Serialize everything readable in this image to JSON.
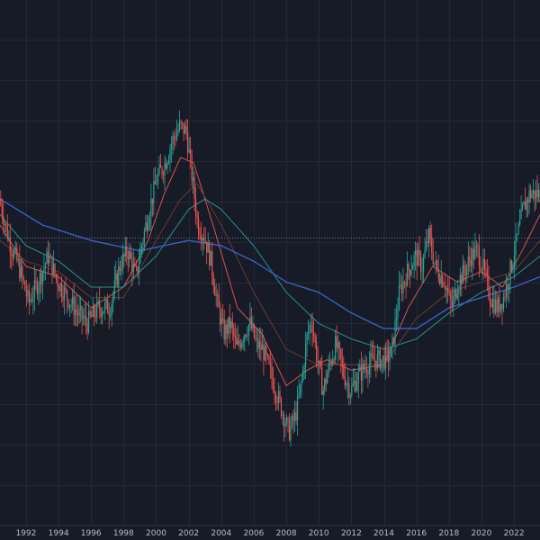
{
  "chart_data": {
    "type": "candlestick",
    "title": "",
    "xlabel": "",
    "ylabel": "",
    "x_ticks": [
      "1992",
      "1994",
      "1996",
      "1998",
      "2000",
      "2002",
      "2004",
      "2006",
      "2008",
      "2010",
      "2012",
      "2014",
      "2016",
      "2018",
      "2020",
      "2022"
    ],
    "xlim": [
      1990.4,
      2023.6
    ],
    "ylim": [
      0,
      100
    ],
    "y_axis_labels_visible": false,
    "grid": true,
    "price_path": [
      [
        1990.4,
        63
      ],
      [
        1991.0,
        55
      ],
      [
        1991.6,
        50
      ],
      [
        1992.2,
        43
      ],
      [
        1992.8,
        47
      ],
      [
        1993.4,
        52
      ],
      [
        1994.0,
        47
      ],
      [
        1994.6,
        44
      ],
      [
        1995.2,
        41
      ],
      [
        1995.8,
        39
      ],
      [
        1996.5,
        42
      ],
      [
        1997.2,
        42
      ],
      [
        1997.8,
        50
      ],
      [
        1998.3,
        53
      ],
      [
        1998.8,
        48
      ],
      [
        1999.2,
        55
      ],
      [
        1999.7,
        62
      ],
      [
        2000.1,
        67
      ],
      [
        2000.6,
        70
      ],
      [
        2001.0,
        74
      ],
      [
        2001.5,
        77
      ],
      [
        2001.9,
        76
      ],
      [
        2002.3,
        66
      ],
      [
        2002.6,
        58
      ],
      [
        2003.0,
        56
      ],
      [
        2003.4,
        51
      ],
      [
        2003.8,
        43
      ],
      [
        2004.2,
        37
      ],
      [
        2004.6,
        39
      ],
      [
        2005.0,
        34
      ],
      [
        2005.4,
        37
      ],
      [
        2005.8,
        39
      ],
      [
        2006.2,
        35
      ],
      [
        2006.6,
        34
      ],
      [
        2007.2,
        28
      ],
      [
        2007.8,
        22
      ],
      [
        2008.2,
        18
      ],
      [
        2008.6,
        21
      ],
      [
        2009.0,
        28
      ],
      [
        2009.3,
        36
      ],
      [
        2009.6,
        40
      ],
      [
        2009.9,
        33
      ],
      [
        2010.3,
        26
      ],
      [
        2010.7,
        31
      ],
      [
        2011.1,
        35
      ],
      [
        2011.6,
        29
      ],
      [
        2012.0,
        26
      ],
      [
        2012.5,
        29
      ],
      [
        2013.0,
        31
      ],
      [
        2013.5,
        32
      ],
      [
        2014.0,
        32
      ],
      [
        2014.5,
        33
      ],
      [
        2015.0,
        45
      ],
      [
        2015.5,
        49
      ],
      [
        2016.0,
        52
      ],
      [
        2016.4,
        50
      ],
      [
        2016.8,
        56
      ],
      [
        2017.2,
        50
      ],
      [
        2017.8,
        47
      ],
      [
        2018.2,
        42
      ],
      [
        2018.6,
        47
      ],
      [
        2019.0,
        49
      ],
      [
        2019.4,
        52
      ],
      [
        2019.8,
        53
      ],
      [
        2020.2,
        49
      ],
      [
        2020.6,
        44
      ],
      [
        2021.0,
        42
      ],
      [
        2021.4,
        44
      ],
      [
        2021.8,
        49
      ],
      [
        2022.2,
        55
      ],
      [
        2022.6,
        61
      ],
      [
        2023.0,
        64
      ],
      [
        2023.6,
        64
      ]
    ],
    "series": [
      {
        "color": "#d9534f",
        "points": [
          [
            1990.4,
            58
          ],
          [
            1992,
            50
          ],
          [
            1994,
            48
          ],
          [
            1996,
            42
          ],
          [
            1998,
            46
          ],
          [
            1999.5,
            55
          ],
          [
            2000.5,
            64
          ],
          [
            2001.5,
            71
          ],
          [
            2002.3,
            70
          ],
          [
            2003.5,
            58
          ],
          [
            2005,
            42
          ],
          [
            2006.5,
            37
          ],
          [
            2008,
            27
          ],
          [
            2009.3,
            30
          ],
          [
            2010.5,
            32
          ],
          [
            2012,
            30
          ],
          [
            2014,
            31
          ],
          [
            2015.5,
            42
          ],
          [
            2017,
            50
          ],
          [
            2018.5,
            47
          ],
          [
            2020,
            49
          ],
          [
            2021.3,
            46
          ],
          [
            2022.5,
            53
          ],
          [
            2023.6,
            60
          ]
        ]
      },
      {
        "color": "#6b3a2e",
        "points": [
          [
            1990.4,
            55
          ],
          [
            1992,
            51
          ],
          [
            1994,
            49
          ],
          [
            1996,
            44
          ],
          [
            1998,
            44
          ],
          [
            2000,
            55
          ],
          [
            2001.5,
            63
          ],
          [
            2002.5,
            66
          ],
          [
            2004,
            58
          ],
          [
            2006,
            45
          ],
          [
            2008,
            34
          ],
          [
            2010,
            31
          ],
          [
            2012,
            31
          ],
          [
            2014,
            31
          ],
          [
            2016,
            40
          ],
          [
            2018,
            45
          ],
          [
            2020,
            47
          ],
          [
            2022,
            49
          ],
          [
            2023.6,
            55
          ]
        ]
      },
      {
        "color": "#2f8f8a",
        "points": [
          [
            1990.4,
            60
          ],
          [
            1992,
            54
          ],
          [
            1994,
            51
          ],
          [
            1996,
            46
          ],
          [
            1998,
            46
          ],
          [
            2000,
            52
          ],
          [
            2002,
            61
          ],
          [
            2003,
            63
          ],
          [
            2004,
            61
          ],
          [
            2006,
            54
          ],
          [
            2008,
            45
          ],
          [
            2010,
            39
          ],
          [
            2012,
            36
          ],
          [
            2014,
            34
          ],
          [
            2016,
            36
          ],
          [
            2018,
            41
          ],
          [
            2020,
            45
          ],
          [
            2022,
            48
          ],
          [
            2023.6,
            52
          ]
        ]
      },
      {
        "color": "#3d5fc4",
        "points": [
          [
            1990.4,
            63
          ],
          [
            1993,
            58
          ],
          [
            1996,
            55
          ],
          [
            1999,
            53
          ],
          [
            2002,
            55
          ],
          [
            2004,
            54
          ],
          [
            2006,
            51
          ],
          [
            2008,
            47
          ],
          [
            2010,
            45
          ],
          [
            2012,
            41
          ],
          [
            2014,
            38
          ],
          [
            2016,
            38
          ],
          [
            2018,
            42
          ],
          [
            2020,
            44
          ],
          [
            2022,
            46
          ],
          [
            2023.6,
            48
          ]
        ]
      }
    ],
    "horizontal_line": {
      "y": 55.5,
      "color": "#6f7380",
      "style": "dotted"
    },
    "colors": {
      "background": "#161b27",
      "grid": "#222837",
      "up": "#26a69a",
      "down": "#ef5350",
      "axis_text": "#b8bcc8"
    }
  }
}
